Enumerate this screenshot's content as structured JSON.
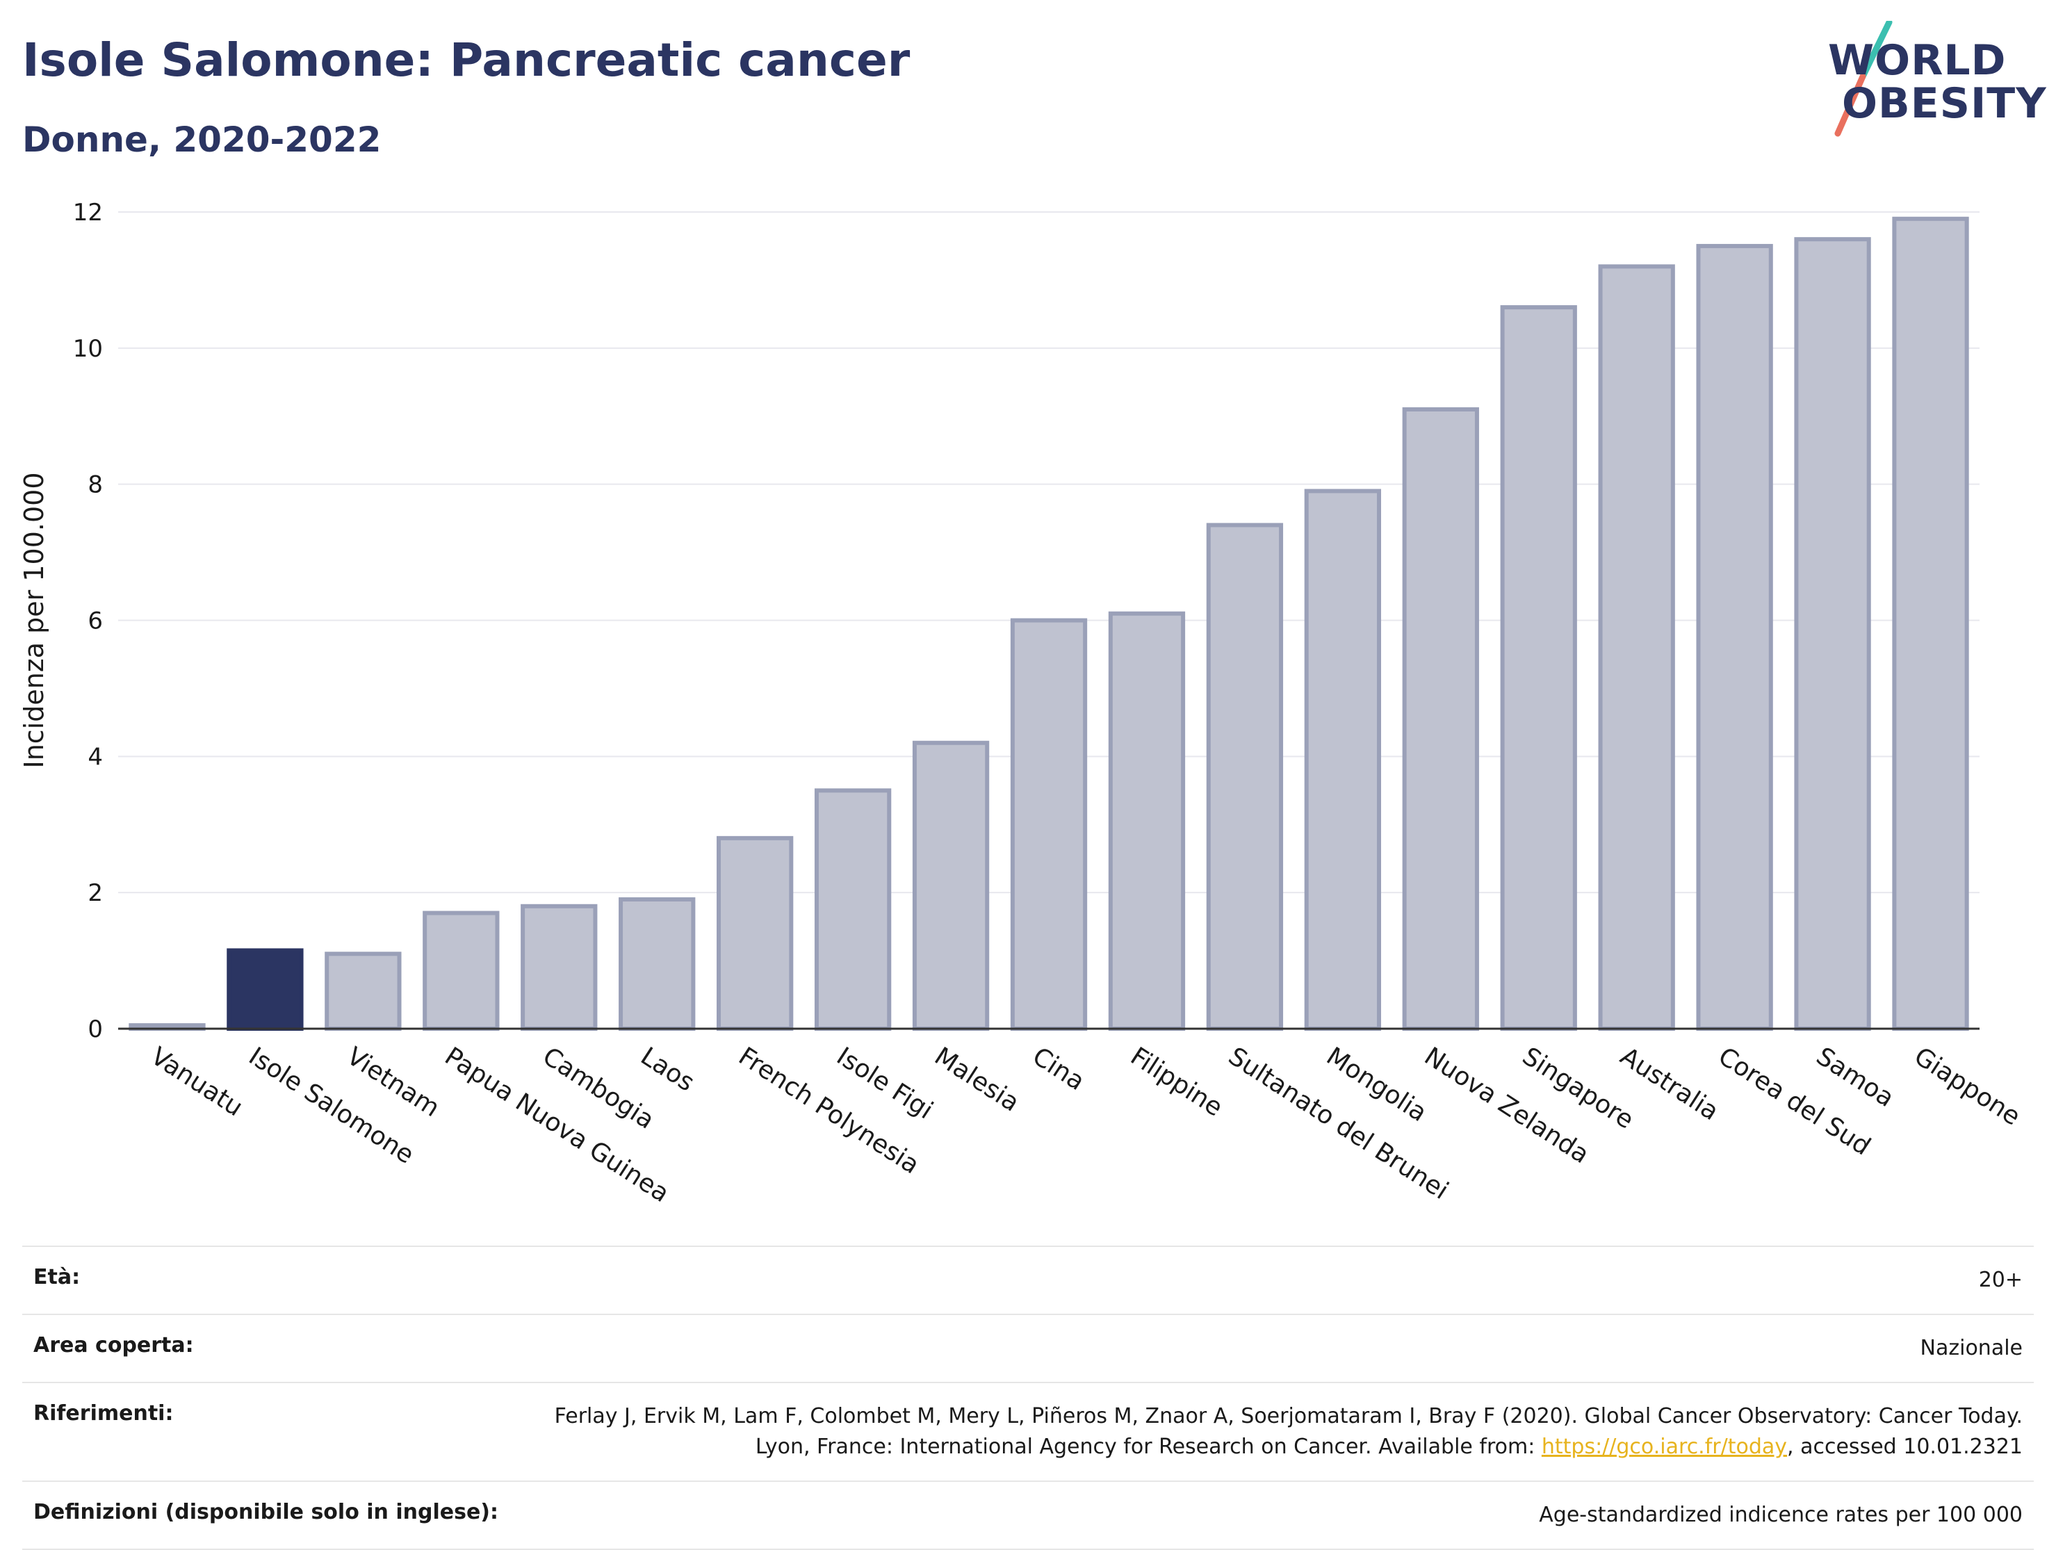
{
  "header": {
    "title": "Isole Salomone: Pancreatic cancer",
    "subtitle": "Donne, 2020-2022"
  },
  "logo": {
    "line1": "WORLD",
    "line2": "OBESITY",
    "accent_colors": [
      "#3bbfb0",
      "#e9705e"
    ]
  },
  "colors": {
    "highlight": "#2b3562",
    "bar_fill": "#bfc2d0",
    "bar_stroke": "#9aa0b8",
    "grid": "#e8e8ee"
  },
  "chart_data": {
    "type": "bar",
    "ylabel": "Incidenza per 100.000",
    "xlabel": "",
    "ylim": [
      0,
      12
    ],
    "yticks": [
      0,
      2,
      4,
      6,
      8,
      10,
      12
    ],
    "grid": true,
    "highlight_category": "Isole Salomone",
    "categories": [
      "Vanuatu",
      "Isole Salomone",
      "Vietnam",
      "Papua Nuova Guinea",
      "Cambogia",
      "Laos",
      "French Polynesia",
      "Isole Figi",
      "Malesia",
      "Cina",
      "Filippine",
      "Sultanato del Brunei",
      "Mongolia",
      "Nuova Zelanda",
      "Singapore",
      "Australia",
      "Corea del Sud",
      "Samoa",
      "Giappone"
    ],
    "values": [
      0.05,
      1.15,
      1.1,
      1.7,
      1.8,
      1.9,
      2.8,
      3.5,
      4.2,
      6.0,
      6.1,
      7.4,
      7.9,
      9.1,
      10.6,
      11.2,
      11.5,
      11.6,
      11.9
    ]
  },
  "info": {
    "age_label": "Età:",
    "age_value": "20+",
    "area_label": "Area coperta:",
    "area_value": "Nazionale",
    "refs_label": "Riferimenti:",
    "refs_text": "Ferlay J, Ervik M, Lam F, Colombet M, Mery L, Piñeros M, Znaor A, Soerjomataram I, Bray F (2020). Global Cancer Observatory: Cancer Today. Lyon, France: International Agency for Research on Cancer. Available from: ",
    "refs_link": "https://gco.iarc.fr/today",
    "refs_tail": ", accessed 10.01.2321",
    "defs_label": "Definizioni (disponibile solo in inglese):",
    "defs_value": "Age-standardized indicence rates per 100 000"
  }
}
